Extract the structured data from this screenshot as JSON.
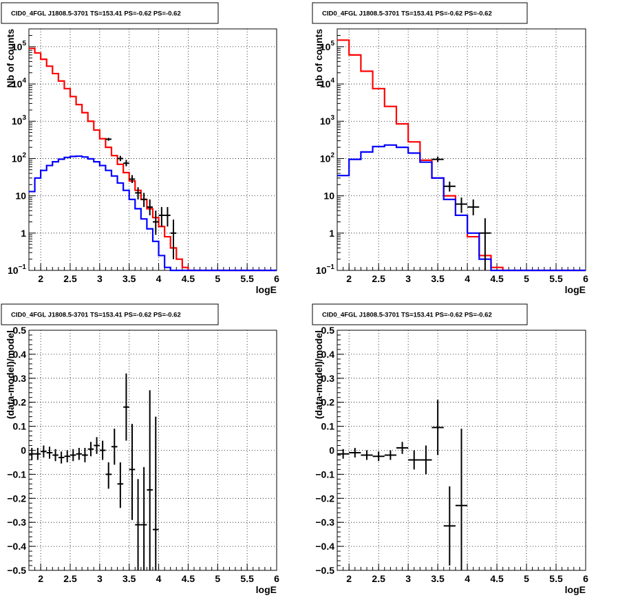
{
  "chart_data": [
    {
      "type": "histogram",
      "title": "CID0_4FGL J1808.5-3701 TS=153.41 PS=-0.62 PS=-0.62",
      "xlabel": "logE",
      "ylabel": "Nb of counts",
      "xlim": [
        1.8,
        6.0
      ],
      "ylim": [
        0.1,
        300000
      ],
      "ylog": true,
      "grid": true,
      "x_ticks": [
        "2",
        "2.5",
        "3",
        "3.5",
        "4",
        "4.5",
        "5",
        "5.5",
        "6"
      ],
      "y_ticks": [
        {
          "value": 0.1,
          "base": "10",
          "exp": "−1"
        },
        {
          "value": 1,
          "base": "1",
          "exp": ""
        },
        {
          "value": 10,
          "base": "10",
          "exp": ""
        },
        {
          "value": 100,
          "base": "10",
          "exp": "2"
        },
        {
          "value": 1000,
          "base": "10",
          "exp": "3"
        },
        {
          "value": 10000,
          "base": "10",
          "exp": "4"
        },
        {
          "value": 100000,
          "base": "10",
          "exp": "5"
        }
      ],
      "series": [
        {
          "role": "model_total",
          "color": "#ff0000",
          "kind": "step",
          "bin_edges": [
            1.8,
            1.9,
            2.0,
            2.1,
            2.2,
            2.3,
            2.4,
            2.5,
            2.6,
            2.7,
            2.8,
            2.9,
            3.0,
            3.1,
            3.2,
            3.3,
            3.4,
            3.5,
            3.6,
            3.7,
            3.8,
            3.9,
            4.0,
            4.1,
            4.2,
            4.3,
            4.4,
            4.5,
            4.6,
            6.0
          ],
          "values": [
            90000,
            68000,
            46000,
            30000,
            19000,
            12000,
            7500,
            4600,
            2800,
            1700,
            1000,
            580,
            340,
            200,
            120,
            70,
            42,
            25,
            14,
            8,
            4.5,
            2.6,
            1.5,
            0.8,
            0.4,
            0.2,
            0.12,
            0.1,
            0.1
          ]
        },
        {
          "role": "model_source",
          "color": "#0000ff",
          "kind": "step",
          "bin_edges": [
            1.8,
            1.9,
            2.0,
            2.1,
            2.2,
            2.3,
            2.4,
            2.5,
            2.6,
            2.7,
            2.8,
            2.9,
            3.0,
            3.1,
            3.2,
            3.3,
            3.4,
            3.5,
            3.6,
            3.7,
            3.8,
            3.9,
            4.0,
            4.1,
            4.2,
            4.3,
            4.4,
            6.0
          ],
          "values": [
            13,
            30,
            48,
            65,
            82,
            96,
            107,
            114,
            116,
            110,
            98,
            82,
            65,
            48,
            34,
            22,
            14,
            8,
            4.5,
            2.4,
            1.3,
            0.6,
            0.25,
            0.12,
            0.1,
            0.1,
            0.1
          ]
        },
        {
          "role": "data",
          "color": "#000000",
          "kind": "errorbar",
          "points": [
            {
              "x": 3.15,
              "y": 330,
              "lo": 300,
              "hi": 360,
              "xerr": 0.05
            },
            {
              "x": 3.35,
              "y": 100,
              "lo": 85,
              "hi": 118,
              "xerr": 0.05
            },
            {
              "x": 3.45,
              "y": 75,
              "lo": 62,
              "hi": 92,
              "xerr": 0.05
            },
            {
              "x": 3.55,
              "y": 28,
              "lo": 22,
              "hi": 36,
              "xerr": 0.05
            },
            {
              "x": 3.65,
              "y": 12,
              "lo": 8,
              "hi": 17,
              "xerr": 0.05
            },
            {
              "x": 3.75,
              "y": 8,
              "lo": 5,
              "hi": 12,
              "xerr": 0.05
            },
            {
              "x": 3.85,
              "y": 5,
              "lo": 3,
              "hi": 8,
              "xerr": 0.05
            },
            {
              "x": 3.95,
              "y": 2,
              "lo": 0.9,
              "hi": 4,
              "xerr": 0.05
            },
            {
              "x": 4.05,
              "y": 3,
              "lo": 1.5,
              "hi": 5,
              "xerr": 0.05
            },
            {
              "x": 4.15,
              "y": 3,
              "lo": 1.5,
              "hi": 5,
              "xerr": 0.05
            },
            {
              "x": 4.25,
              "y": 1,
              "lo": 0.2,
              "hi": 2.3,
              "xerr": 0.05
            }
          ]
        }
      ]
    },
    {
      "type": "histogram",
      "title": "CID0_4FGL J1808.5-3701 TS=153.41 PS=-0.62 PS=-0.62",
      "xlabel": "logE",
      "ylabel": "nb of counts",
      "xlim": [
        1.8,
        6.0
      ],
      "ylim": [
        0.1,
        300000
      ],
      "ylog": true,
      "grid": true,
      "x_ticks": [
        "2",
        "2.5",
        "3",
        "3.5",
        "4",
        "4.5",
        "5",
        "5.5",
        "6"
      ],
      "y_ticks": [
        {
          "value": 0.1,
          "base": "10",
          "exp": "−1"
        },
        {
          "value": 1,
          "base": "1",
          "exp": ""
        },
        {
          "value": 10,
          "base": "10",
          "exp": ""
        },
        {
          "value": 100,
          "base": "10",
          "exp": "2"
        },
        {
          "value": 1000,
          "base": "10",
          "exp": "3"
        },
        {
          "value": 10000,
          "base": "10",
          "exp": "4"
        },
        {
          "value": 100000,
          "base": "10",
          "exp": "5"
        }
      ],
      "series": [
        {
          "role": "model_total",
          "color": "#ff0000",
          "kind": "step",
          "bin_edges": [
            1.8,
            2.0,
            2.2,
            2.4,
            2.6,
            2.8,
            3.0,
            3.2,
            3.4,
            3.6,
            3.8,
            4.0,
            4.2,
            4.4,
            4.6,
            4.8,
            6.0
          ],
          "values": [
            150000,
            60000,
            22000,
            7500,
            2500,
            850,
            280,
            90,
            30,
            10,
            3,
            0.8,
            0.25,
            0.12,
            0.1,
            0.1
          ]
        },
        {
          "role": "model_source",
          "color": "#0000ff",
          "kind": "step",
          "bin_edges": [
            1.8,
            2.0,
            2.2,
            2.4,
            2.6,
            2.8,
            3.0,
            3.2,
            3.4,
            3.6,
            3.8,
            4.0,
            4.2,
            4.4,
            6.0
          ],
          "values": [
            35,
            95,
            150,
            210,
            230,
            200,
            140,
            80,
            30,
            8,
            3,
            1,
            0.2,
            0.1
          ]
        },
        {
          "role": "data",
          "color": "#000000",
          "kind": "errorbar",
          "points": [
            {
              "x": 3.5,
              "y": 95,
              "lo": 80,
              "hi": 112,
              "xerr": 0.1
            },
            {
              "x": 3.7,
              "y": 18,
              "lo": 13,
              "hi": 24,
              "xerr": 0.1
            },
            {
              "x": 3.9,
              "y": 6,
              "lo": 3.5,
              "hi": 9,
              "xerr": 0.1
            },
            {
              "x": 4.1,
              "y": 5,
              "lo": 3,
              "hi": 8,
              "xerr": 0.1
            },
            {
              "x": 4.3,
              "y": 1,
              "lo": 0.1,
              "hi": 2.5,
              "xerr": 0.1
            }
          ]
        }
      ]
    },
    {
      "type": "scatter",
      "title": "CID0_4FGL J1808.5-3701 TS=153.41 PS=-0.62 PS=-0.62",
      "xlabel": "logE",
      "ylabel": "(data-model)/model",
      "xlim": [
        1.8,
        6.0
      ],
      "ylim": [
        -0.5,
        0.5
      ],
      "ylog": false,
      "grid": true,
      "x_ticks": [
        "2",
        "2.5",
        "3",
        "3.5",
        "4",
        "4.5",
        "5",
        "5.5",
        "6"
      ],
      "y_ticks": [
        {
          "value": -0.5,
          "label": "−0.5"
        },
        {
          "value": -0.4,
          "label": "−0.4"
        },
        {
          "value": -0.3,
          "label": "−0.3"
        },
        {
          "value": -0.2,
          "label": "−0.2"
        },
        {
          "value": -0.1,
          "label": "−0.1"
        },
        {
          "value": 0,
          "label": "0"
        },
        {
          "value": 0.1,
          "label": "0.1"
        },
        {
          "value": 0.2,
          "label": "0.2"
        },
        {
          "value": 0.3,
          "label": "0.3"
        },
        {
          "value": 0.4,
          "label": "0.4"
        },
        {
          "value": 0.5,
          "label": "0.5"
        }
      ],
      "series": [
        {
          "role": "residuals",
          "color": "#000000",
          "kind": "errorbar",
          "points": [
            {
              "x": 1.85,
              "y": -0.015,
              "lo": -0.04,
              "hi": 0.01,
              "xerr": 0.05
            },
            {
              "x": 1.95,
              "y": -0.015,
              "lo": -0.04,
              "hi": 0.01,
              "xerr": 0.05
            },
            {
              "x": 2.05,
              "y": -0.005,
              "lo": -0.03,
              "hi": 0.02,
              "xerr": 0.05
            },
            {
              "x": 2.15,
              "y": -0.01,
              "lo": -0.035,
              "hi": 0.015,
              "xerr": 0.05
            },
            {
              "x": 2.25,
              "y": -0.02,
              "lo": -0.045,
              "hi": 0.005,
              "xerr": 0.05
            },
            {
              "x": 2.35,
              "y": -0.03,
              "lo": -0.055,
              "hi": -0.005,
              "xerr": 0.05
            },
            {
              "x": 2.45,
              "y": -0.025,
              "lo": -0.05,
              "hi": 0.0,
              "xerr": 0.05
            },
            {
              "x": 2.55,
              "y": -0.02,
              "lo": -0.045,
              "hi": 0.005,
              "xerr": 0.05
            },
            {
              "x": 2.65,
              "y": -0.015,
              "lo": -0.04,
              "hi": 0.01,
              "xerr": 0.05
            },
            {
              "x": 2.75,
              "y": -0.02,
              "lo": -0.05,
              "hi": 0.01,
              "xerr": 0.05
            },
            {
              "x": 2.85,
              "y": 0.005,
              "lo": -0.025,
              "hi": 0.035,
              "xerr": 0.05
            },
            {
              "x": 2.95,
              "y": 0.02,
              "lo": -0.015,
              "hi": 0.055,
              "xerr": 0.05
            },
            {
              "x": 3.05,
              "y": 0.0,
              "lo": -0.04,
              "hi": 0.04,
              "xerr": 0.05
            },
            {
              "x": 3.15,
              "y": -0.1,
              "lo": -0.16,
              "hi": -0.05,
              "xerr": 0.05
            },
            {
              "x": 3.25,
              "y": 0.015,
              "lo": -0.06,
              "hi": 0.09,
              "xerr": 0.05
            },
            {
              "x": 3.35,
              "y": -0.14,
              "lo": -0.24,
              "hi": -0.05,
              "xerr": 0.05
            },
            {
              "x": 3.45,
              "y": 0.18,
              "lo": 0.04,
              "hi": 0.32,
              "xerr": 0.05
            },
            {
              "x": 3.55,
              "y": -0.08,
              "lo": -0.29,
              "hi": 0.11,
              "xerr": 0.05
            },
            {
              "x": 3.65,
              "y": -0.31,
              "lo": -0.5,
              "hi": -0.12,
              "xerr": 0.05
            },
            {
              "x": 3.75,
              "y": -0.31,
              "lo": -0.5,
              "hi": -0.07,
              "xerr": 0.05
            },
            {
              "x": 3.85,
              "y": -0.165,
              "lo": -0.5,
              "hi": 0.25,
              "xerr": 0.05
            },
            {
              "x": 3.95,
              "y": -0.33,
              "lo": -0.5,
              "hi": 0.14,
              "xerr": 0.05
            }
          ]
        }
      ]
    },
    {
      "type": "scatter",
      "title": "CID0_4FGL J1808.5-3701 TS=153.41 PS=-0.62 PS=-0.62",
      "xlabel": "logE",
      "ylabel": "(data-model)/model",
      "xlim": [
        1.8,
        6.0
      ],
      "ylim": [
        -0.5,
        0.5
      ],
      "ylog": false,
      "grid": true,
      "x_ticks": [
        "2",
        "2.5",
        "3",
        "3.5",
        "4",
        "4.5",
        "5",
        "5.5",
        "6"
      ],
      "y_ticks": [
        {
          "value": -0.5,
          "label": "−0.5"
        },
        {
          "value": -0.4,
          "label": "−0.4"
        },
        {
          "value": -0.3,
          "label": "−0.3"
        },
        {
          "value": -0.2,
          "label": "−0.2"
        },
        {
          "value": -0.1,
          "label": "−0.1"
        },
        {
          "value": 0,
          "label": "0"
        },
        {
          "value": 0.1,
          "label": "0.1"
        },
        {
          "value": 0.2,
          "label": "0.2"
        },
        {
          "value": 0.3,
          "label": "0.3"
        },
        {
          "value": 0.4,
          "label": "0.4"
        },
        {
          "value": 0.5,
          "label": "0.5"
        }
      ],
      "series": [
        {
          "role": "residuals",
          "color": "#000000",
          "kind": "errorbar",
          "points": [
            {
              "x": 1.9,
              "y": -0.015,
              "lo": -0.035,
              "hi": 0.005,
              "xerr": 0.1
            },
            {
              "x": 2.1,
              "y": -0.01,
              "lo": -0.03,
              "hi": 0.01,
              "xerr": 0.1
            },
            {
              "x": 2.3,
              "y": -0.02,
              "lo": -0.04,
              "hi": 0.0,
              "xerr": 0.1
            },
            {
              "x": 2.5,
              "y": -0.025,
              "lo": -0.045,
              "hi": -0.005,
              "xerr": 0.1
            },
            {
              "x": 2.7,
              "y": -0.02,
              "lo": -0.04,
              "hi": 0.0,
              "xerr": 0.1
            },
            {
              "x": 2.9,
              "y": 0.01,
              "lo": -0.015,
              "hi": 0.035,
              "xerr": 0.1
            },
            {
              "x": 3.1,
              "y": -0.04,
              "lo": -0.08,
              "hi": 0.0,
              "xerr": 0.1
            },
            {
              "x": 3.3,
              "y": -0.04,
              "lo": -0.1,
              "hi": 0.02,
              "xerr": 0.1
            },
            {
              "x": 3.5,
              "y": 0.095,
              "lo": -0.02,
              "hi": 0.21,
              "xerr": 0.1
            },
            {
              "x": 3.7,
              "y": -0.315,
              "lo": -0.48,
              "hi": -0.15,
              "xerr": 0.1
            },
            {
              "x": 3.9,
              "y": -0.23,
              "lo": -0.5,
              "hi": 0.09,
              "xerr": 0.1
            }
          ]
        }
      ]
    }
  ]
}
